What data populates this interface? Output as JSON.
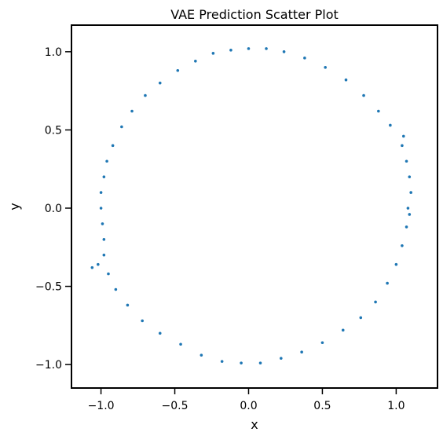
{
  "chart_data": {
    "type": "scatter",
    "title": "VAE Prediction Scatter Plot",
    "xlabel": "x",
    "ylabel": "y",
    "xlim": [
      -1.2,
      1.28
    ],
    "ylim": [
      -1.15,
      1.17
    ],
    "x_ticks": [
      -1.0,
      -0.5,
      0.0,
      0.5,
      1.0
    ],
    "x_tick_labels": [
      "−1.0",
      "−0.5",
      "0.0",
      "0.5",
      "1.0"
    ],
    "y_ticks": [
      -1.0,
      -0.5,
      0.0,
      0.5,
      1.0
    ],
    "y_tick_labels": [
      "−1.0",
      "−0.5",
      "0.0",
      "0.5",
      "1.0"
    ],
    "grid": false,
    "legend": "none",
    "marker_color": "#1f77b4",
    "series": [
      {
        "values": [
          {
            "x": 1.08,
            "y": 0.0
          },
          {
            "x": 1.1,
            "y": 0.1
          },
          {
            "x": 1.09,
            "y": 0.2
          },
          {
            "x": 1.07,
            "y": 0.3
          },
          {
            "x": 1.04,
            "y": 0.4
          },
          {
            "x": 1.05,
            "y": 0.46
          },
          {
            "x": 0.96,
            "y": 0.53
          },
          {
            "x": 0.88,
            "y": 0.62
          },
          {
            "x": 0.78,
            "y": 0.72
          },
          {
            "x": 0.66,
            "y": 0.82
          },
          {
            "x": 0.52,
            "y": 0.9
          },
          {
            "x": 0.38,
            "y": 0.96
          },
          {
            "x": 0.24,
            "y": 1.0
          },
          {
            "x": 0.12,
            "y": 1.02
          },
          {
            "x": 0.0,
            "y": 1.02
          },
          {
            "x": -0.12,
            "y": 1.01
          },
          {
            "x": -0.24,
            "y": 0.99
          },
          {
            "x": -0.36,
            "y": 0.94
          },
          {
            "x": -0.48,
            "y": 0.88
          },
          {
            "x": -0.6,
            "y": 0.8
          },
          {
            "x": -0.7,
            "y": 0.72
          },
          {
            "x": -0.79,
            "y": 0.62
          },
          {
            "x": -0.86,
            "y": 0.52
          },
          {
            "x": -0.92,
            "y": 0.4
          },
          {
            "x": -0.96,
            "y": 0.3
          },
          {
            "x": -0.98,
            "y": 0.2
          },
          {
            "x": -1.0,
            "y": 0.1
          },
          {
            "x": -1.0,
            "y": 0.0
          },
          {
            "x": -0.99,
            "y": -0.1
          },
          {
            "x": -0.98,
            "y": -0.2
          },
          {
            "x": -0.98,
            "y": -0.3
          },
          {
            "x": -1.02,
            "y": -0.36
          },
          {
            "x": -1.06,
            "y": -0.38
          },
          {
            "x": -0.95,
            "y": -0.42
          },
          {
            "x": -0.9,
            "y": -0.52
          },
          {
            "x": -0.82,
            "y": -0.62
          },
          {
            "x": -0.72,
            "y": -0.72
          },
          {
            "x": -0.6,
            "y": -0.8
          },
          {
            "x": -0.46,
            "y": -0.87
          },
          {
            "x": -0.32,
            "y": -0.94
          },
          {
            "x": -0.18,
            "y": -0.98
          },
          {
            "x": -0.05,
            "y": -0.99
          },
          {
            "x": 0.08,
            "y": -0.99
          },
          {
            "x": 0.22,
            "y": -0.96
          },
          {
            "x": 0.36,
            "y": -0.92
          },
          {
            "x": 0.5,
            "y": -0.86
          },
          {
            "x": 0.64,
            "y": -0.78
          },
          {
            "x": 0.76,
            "y": -0.7
          },
          {
            "x": 0.86,
            "y": -0.6
          },
          {
            "x": 0.94,
            "y": -0.48
          },
          {
            "x": 1.0,
            "y": -0.36
          },
          {
            "x": 1.04,
            "y": -0.24
          },
          {
            "x": 1.07,
            "y": -0.12
          },
          {
            "x": 1.09,
            "y": -0.04
          }
        ]
      }
    ]
  }
}
